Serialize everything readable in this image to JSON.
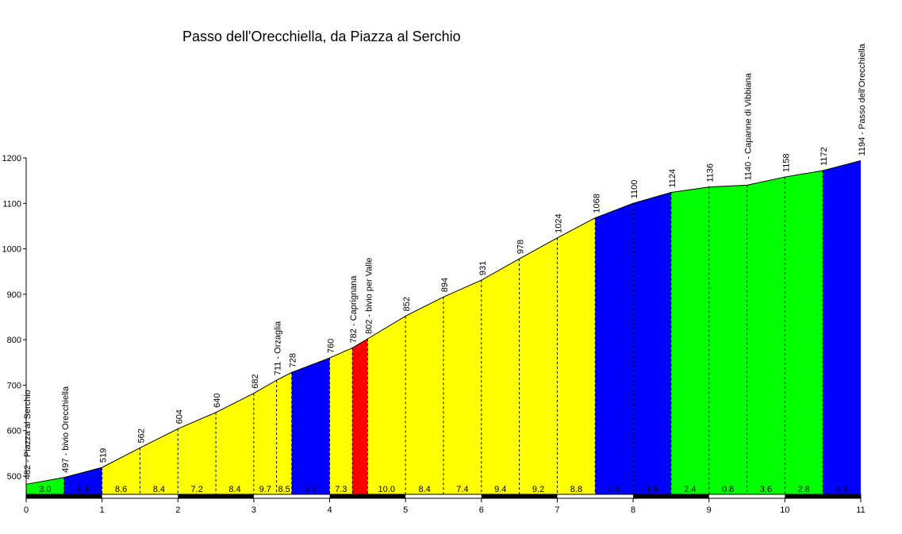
{
  "chart_data": {
    "type": "area",
    "title": "Passo dell'Orecchiella, da Piazza al Serchio",
    "xlabel": "",
    "ylabel": "",
    "xlim": [
      0,
      11
    ],
    "ylim": [
      455,
      1200
    ],
    "x_ticks": [
      "0",
      "1",
      "2",
      "3",
      "4",
      "5",
      "6",
      "7",
      "8",
      "9",
      "10",
      "11"
    ],
    "y_ticks": [
      "500",
      "600",
      "700",
      "800",
      "900",
      "1000",
      "1100",
      "1200"
    ],
    "profile": [
      {
        "x": 0,
        "y": 482,
        "label": "482 - Piazza al Serchio"
      },
      {
        "x": 0.5,
        "y": 497,
        "label": "497 - bivio Orecchiella"
      },
      {
        "x": 1,
        "y": 519,
        "label": "519"
      },
      {
        "x": 1.5,
        "y": 562,
        "label": "562"
      },
      {
        "x": 2,
        "y": 604,
        "label": "604"
      },
      {
        "x": 2.5,
        "y": 640,
        "label": "640"
      },
      {
        "x": 3,
        "y": 682,
        "label": "682"
      },
      {
        "x": 3.3,
        "y": 711,
        "label": "711 - Orzaglia"
      },
      {
        "x": 3.5,
        "y": 728,
        "label": "728"
      },
      {
        "x": 4,
        "y": 760,
        "label": "760"
      },
      {
        "x": 4.3,
        "y": 782,
        "label": "782 - Caprignana"
      },
      {
        "x": 4.5,
        "y": 802,
        "label": "802 - bivio per Valle"
      },
      {
        "x": 5,
        "y": 852,
        "label": "852"
      },
      {
        "x": 5.5,
        "y": 894,
        "label": "894"
      },
      {
        "x": 6,
        "y": 931,
        "label": "931"
      },
      {
        "x": 6.5,
        "y": 978,
        "label": "978"
      },
      {
        "x": 7,
        "y": 1024,
        "label": "1024"
      },
      {
        "x": 7.5,
        "y": 1068,
        "label": "1068"
      },
      {
        "x": 8,
        "y": 1100,
        "label": "1100"
      },
      {
        "x": 8.5,
        "y": 1124,
        "label": "1124"
      },
      {
        "x": 9,
        "y": 1136,
        "label": "1136"
      },
      {
        "x": 9.5,
        "y": 1140,
        "label": "1140 - Capanne di Vibbiana"
      },
      {
        "x": 10,
        "y": 1158,
        "label": "1158"
      },
      {
        "x": 10.5,
        "y": 1172,
        "label": "1172"
      },
      {
        "x": 11,
        "y": 1194,
        "label": "1194 - Passo dell'Orecchiella"
      }
    ],
    "segments": [
      {
        "x0": 0,
        "x1": 0.5,
        "grade": "3.0",
        "color": "#00ff00"
      },
      {
        "x0": 0.5,
        "x1": 1,
        "grade": "4.4",
        "color": "#0000ff"
      },
      {
        "x0": 1,
        "x1": 1.5,
        "grade": "8.6",
        "color": "#ffff00"
      },
      {
        "x0": 1.5,
        "x1": 2,
        "grade": "8.4",
        "color": "#ffff00"
      },
      {
        "x0": 2,
        "x1": 2.5,
        "grade": "7.2",
        "color": "#ffff00"
      },
      {
        "x0": 2.5,
        "x1": 3,
        "grade": "8.4",
        "color": "#ffff00"
      },
      {
        "x0": 3,
        "x1": 3.3,
        "grade": "9.7",
        "color": "#ffff00"
      },
      {
        "x0": 3.3,
        "x1": 3.5,
        "grade": "8.5",
        "color": "#ffff00"
      },
      {
        "x0": 3.5,
        "x1": 4,
        "grade": "6.4",
        "color": "#0000ff"
      },
      {
        "x0": 4,
        "x1": 4.3,
        "grade": "7.3",
        "color": "#ffff00"
      },
      {
        "x0": 4.3,
        "x1": 4.5,
        "grade": "",
        "color": "#ff0000"
      },
      {
        "x0": 4.5,
        "x1": 5,
        "grade": "10.0",
        "color": "#ffff00"
      },
      {
        "x0": 5,
        "x1": 5.5,
        "grade": "8.4",
        "color": "#ffff00"
      },
      {
        "x0": 5.5,
        "x1": 6,
        "grade": "7.4",
        "color": "#ffff00"
      },
      {
        "x0": 6,
        "x1": 6.5,
        "grade": "9.4",
        "color": "#ffff00"
      },
      {
        "x0": 6.5,
        "x1": 7,
        "grade": "9.2",
        "color": "#ffff00"
      },
      {
        "x0": 7,
        "x1": 7.5,
        "grade": "8.8",
        "color": "#ffff00"
      },
      {
        "x0": 7.5,
        "x1": 8,
        "grade": "6.4",
        "color": "#0000ff"
      },
      {
        "x0": 8,
        "x1": 8.5,
        "grade": "4.8",
        "color": "#0000ff"
      },
      {
        "x0": 8.5,
        "x1": 9,
        "grade": "2.4",
        "color": "#00ff00"
      },
      {
        "x0": 9,
        "x1": 9.5,
        "grade": "0.8",
        "color": "#00ff00"
      },
      {
        "x0": 9.5,
        "x1": 10,
        "grade": "3.6",
        "color": "#00ff00"
      },
      {
        "x0": 10,
        "x1": 10.5,
        "grade": "2.8",
        "color": "#00ff00"
      },
      {
        "x0": 10.5,
        "x1": 11,
        "grade": "4.4",
        "color": "#0000ff"
      }
    ]
  }
}
